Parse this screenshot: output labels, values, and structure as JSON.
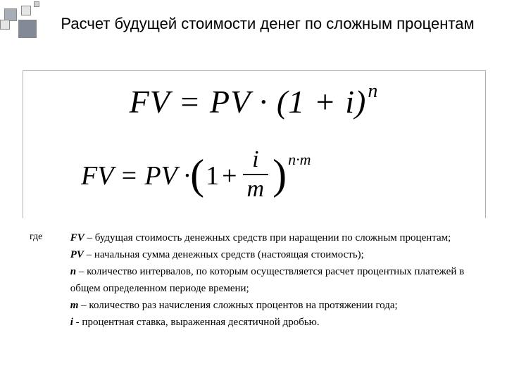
{
  "decoration": {
    "box_colors": [
      "#a8aeb8",
      "#e5e5e5",
      "#828a98",
      "#e5e5e5",
      "#d0d0d0"
    ]
  },
  "title": "Расчет будущей стоимости денег по сложным процентам",
  "formula1": {
    "text_base": "FV = PV · (1 + i)",
    "exp": "n"
  },
  "formula2": {
    "lhs": "FV = PV · ",
    "paren_open": "(",
    "one": "1",
    "plus": "+",
    "frac_num": "i",
    "frac_den": "m",
    "paren_close": ")",
    "exp": "n·m"
  },
  "legend": {
    "where": "где",
    "items": [
      {
        "var": "FV",
        "text": " – будущая стоимость денежных средств при наращении по сложным процентам;"
      },
      {
        "var": "PV",
        "text": " – начальная сумма денежных средств (настоящая стоимость);"
      },
      {
        "var": "n",
        "text": " – количество интервалов, по которым осуществляется расчет процентных платежей в общем определенном периоде времени;"
      },
      {
        "var": "m",
        "text": " – количество раз начисления сложных процентов на протяжении года;"
      },
      {
        "var": "i",
        "text": " - процентная ставка, выраженная десятичной дробью."
      }
    ]
  }
}
